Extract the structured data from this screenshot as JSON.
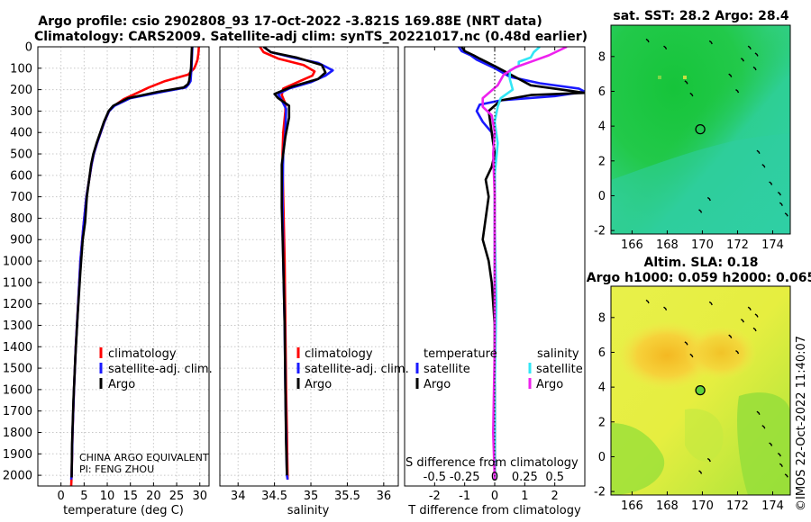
{
  "header": {
    "line1": "Argo profile: csio 2902808_93 17-Oct-2022 -3.821S 169.88E (NRT data)",
    "line2": "Climatology: CARS2009. Satellite-adj clim: synTS_20221017.nc (0.48d earlier)"
  },
  "colors": {
    "climatology": "#ff0000",
    "satellite": "#1a1aff",
    "argo": "#000000",
    "sat_salinity": "#33e6f5",
    "argo_salinity": "#ee22ee"
  },
  "chart_data": [
    {
      "id": "temperature",
      "type": "line",
      "xlabel": "temperature (deg C)",
      "ylabel": "",
      "xlim": [
        -5,
        32
      ],
      "ylim": [
        2050,
        0
      ],
      "xticks": [
        0,
        5,
        10,
        15,
        20,
        25,
        30
      ],
      "yticks": [
        0,
        100,
        200,
        300,
        400,
        500,
        600,
        700,
        800,
        900,
        1000,
        1100,
        1200,
        1300,
        1400,
        1500,
        1600,
        1700,
        1800,
        1900,
        2000
      ],
      "legend": [
        "climatology",
        "satellite-adj. clim.",
        "Argo"
      ],
      "credits": [
        "CHINA ARGO EQUIVALENT",
        "PI: FENG ZHOU"
      ],
      "series": [
        {
          "name": "climatology",
          "color": "#ff0000",
          "x": [
            29.8,
            29.7,
            29.5,
            29.2,
            28.8,
            27.5,
            22.5,
            19.0,
            16.5,
            13.5,
            11.5,
            10.4,
            9.4,
            8.6,
            7.8,
            7.1,
            6.6,
            5.5,
            4.8,
            4.2,
            3.7,
            3.2,
            2.8,
            2.5,
            2.3,
            2.2
          ],
          "y": [
            0,
            30,
            60,
            80,
            100,
            130,
            160,
            190,
            215,
            245,
            275,
            300,
            350,
            400,
            450,
            500,
            550,
            700,
            850,
            1000,
            1200,
            1400,
            1600,
            1800,
            2000,
            2050
          ]
        },
        {
          "name": "satellite-adj. clim.",
          "color": "#1a1aff",
          "x": [
            28.4,
            28.3,
            28.2,
            28.1,
            28.0,
            27.6,
            27.0,
            22.0,
            15.0,
            11.6,
            10.4,
            9.4,
            8.6,
            7.8,
            7.1,
            6.6,
            5.5,
            4.8,
            4.2,
            3.7,
            3.2,
            2.8,
            2.5,
            2.3,
            2.2
          ],
          "y": [
            0,
            50,
            100,
            130,
            160,
            175,
            190,
            210,
            240,
            275,
            300,
            350,
            400,
            450,
            500,
            550,
            700,
            850,
            1000,
            1200,
            1400,
            1600,
            1800,
            2000,
            2020
          ]
        },
        {
          "name": "Argo",
          "color": "#000000",
          "x": [
            28.3,
            28.2,
            28.1,
            27.9,
            27.7,
            27.4,
            26.5,
            21.0,
            14.5,
            11.3,
            10.3,
            9.3,
            8.5,
            7.7,
            7.0,
            6.5,
            5.6,
            5.2,
            4.7,
            4.2,
            3.6,
            3.1,
            2.7,
            2.4,
            2.3
          ],
          "y": [
            0,
            50,
            100,
            130,
            160,
            175,
            190,
            210,
            240,
            275,
            300,
            350,
            400,
            450,
            500,
            550,
            700,
            820,
            900,
            1050,
            1250,
            1450,
            1650,
            1850,
            2010
          ]
        }
      ]
    },
    {
      "id": "salinity",
      "type": "line",
      "xlabel": "salinity",
      "ylabel": "",
      "xlim": [
        33.75,
        36.2
      ],
      "ylim": [
        2050,
        0
      ],
      "xticks": [
        34,
        34.5,
        35,
        35.5,
        36
      ],
      "legend": [
        "climatology",
        "satellite-adj. clim.",
        "Argo"
      ],
      "series": [
        {
          "name": "climatology",
          "color": "#ff0000",
          "x": [
            34.3,
            34.35,
            34.55,
            34.9,
            35.05,
            35.02,
            34.85,
            34.62,
            34.6,
            34.65,
            34.65,
            34.62,
            34.61,
            34.62,
            34.64,
            34.65,
            34.66,
            34.67,
            34.68
          ],
          "y": [
            0,
            25,
            55,
            85,
            115,
            135,
            160,
            195,
            225,
            265,
            300,
            400,
            500,
            700,
            1000,
            1300,
            1600,
            1800,
            2020
          ]
        },
        {
          "name": "satellite-adj. clim.",
          "color": "#1a1aff",
          "x": [
            34.35,
            34.45,
            34.75,
            35.1,
            35.3,
            35.2,
            35.0,
            34.7,
            34.55,
            34.6,
            34.66,
            34.65,
            34.62,
            34.61,
            34.62,
            34.64,
            34.65,
            34.66,
            34.67,
            34.68
          ],
          "y": [
            0,
            25,
            50,
            75,
            110,
            135,
            165,
            195,
            220,
            250,
            290,
            400,
            500,
            700,
            1000,
            1300,
            1600,
            1800,
            2000,
            2020
          ]
        },
        {
          "name": "Argo",
          "color": "#000000",
          "x": [
            34.35,
            34.45,
            34.8,
            35.15,
            35.2,
            35.1,
            34.75,
            34.5,
            34.55,
            34.7,
            34.7,
            34.65,
            34.6,
            34.6,
            34.62,
            34.64,
            34.65,
            34.66,
            34.67
          ],
          "y": [
            0,
            25,
            50,
            85,
            120,
            150,
            185,
            220,
            240,
            275,
            330,
            420,
            550,
            750,
            1000,
            1300,
            1600,
            1850,
            2000
          ]
        }
      ]
    },
    {
      "id": "difference",
      "type": "line",
      "xlabel": "T difference from climatology",
      "x2label": "S difference from climatology",
      "xlim": [
        -3,
        3
      ],
      "ylim": [
        2050,
        0
      ],
      "xticks": [
        -2,
        -1,
        0,
        1,
        2
      ],
      "x2ticks": [
        "-0.5",
        "-0.25",
        "0",
        "0.25",
        "0.5"
      ],
      "legend_headers": [
        "temperature",
        "salinity"
      ],
      "legend": [
        "satellite",
        "Argo",
        "satellite",
        "Argo"
      ],
      "series": [
        {
          "name": "temperature satellite",
          "color": "#1a1aff",
          "x": [
            -1.2,
            -1.1,
            -0.8,
            -0.6,
            0.0,
            0.5,
            1.5,
            2.8,
            3.0,
            2.0,
            0.2,
            -0.5,
            -0.6,
            -0.4,
            -0.1,
            0.0,
            0.0,
            0.0,
            0.0,
            0.0,
            0.0
          ],
          "y": [
            0,
            20,
            40,
            60,
            100,
            140,
            170,
            195,
            210,
            230,
            250,
            270,
            300,
            350,
            400,
            500,
            700,
            1000,
            1400,
            1800,
            2020
          ]
        },
        {
          "name": "temperature Argo",
          "color": "#000000",
          "x": [
            -1.1,
            -1.0,
            -0.7,
            -0.5,
            0.0,
            1.2,
            2.5,
            3.0,
            1.2,
            0.2,
            -0.2,
            -0.1,
            0.0,
            -0.1,
            -0.3,
            -0.2,
            -0.3,
            -0.4,
            -0.2,
            -0.1,
            0.0,
            0.0,
            0.0
          ],
          "y": [
            0,
            20,
            40,
            55,
            90,
            180,
            205,
            215,
            225,
            250,
            300,
            400,
            500,
            560,
            620,
            700,
            800,
            900,
            1000,
            1100,
            1300,
            1700,
            2020
          ]
        },
        {
          "name": "salinity satellite",
          "color": "#33e6f5",
          "x": [
            1.5,
            1.3,
            1.2,
            0.8,
            0.8,
            0.5,
            0.5,
            0.6,
            0.2,
            0.1,
            0.0,
            0.1,
            0.0,
            0.0,
            0.05,
            0.0,
            0.0
          ],
          "y": [
            0,
            25,
            50,
            70,
            90,
            110,
            150,
            200,
            240,
            280,
            350,
            450,
            600,
            800,
            1200,
            1600,
            2020
          ]
        },
        {
          "name": "salinity Argo",
          "color": "#ee22ee",
          "x": [
            2.4,
            1.8,
            1.2,
            0.7,
            0.3,
            0.1,
            -0.4,
            -0.4,
            -0.1,
            0.0,
            -0.05,
            0.0,
            0.0,
            0.0,
            -0.05,
            0.0
          ],
          "y": [
            0,
            40,
            70,
            95,
            130,
            180,
            240,
            280,
            320,
            400,
            500,
            700,
            1000,
            1400,
            1800,
            2020
          ]
        }
      ]
    },
    {
      "id": "sst_map",
      "type": "heatmap",
      "title": "sat. SST: 28.2 Argo: 28.4",
      "xlim": [
        164.8,
        175
      ],
      "ylim": [
        -2.2,
        9.8
      ],
      "xticks": [
        166,
        168,
        170,
        172,
        174
      ],
      "yticks": [
        -2,
        0,
        2,
        4,
        6,
        8
      ],
      "argo_position": [
        169.88,
        3.82
      ]
    },
    {
      "id": "sla_map",
      "type": "heatmap",
      "title": "Altim. SLA: 0.18",
      "subtitle": "Argo h1000: 0.059 h2000: 0.065",
      "xlim": [
        164.8,
        175
      ],
      "ylim": [
        -2.2,
        9.8
      ],
      "xticks": [
        166,
        168,
        170,
        172,
        174
      ],
      "yticks": [
        -2,
        0,
        2,
        4,
        6,
        8
      ],
      "argo_position": [
        169.88,
        3.82
      ]
    }
  ],
  "credit": "©IMOS 22-Oct-2022 11:40:07"
}
